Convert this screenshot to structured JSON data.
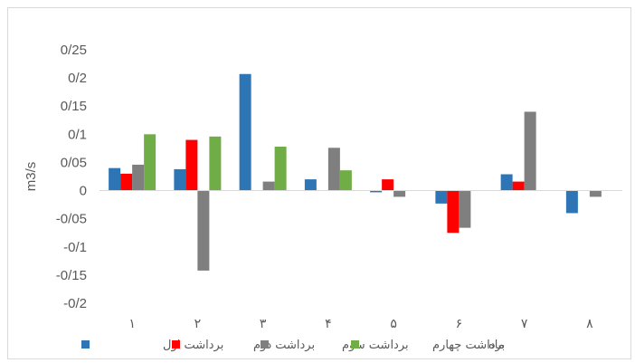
{
  "chart_data": {
    "type": "bar",
    "ylabel": "m3/s",
    "xlabel": "ماه",
    "ylim": [
      -0.2,
      0.25
    ],
    "yticks": [
      "-0/2",
      "-0/15",
      "-0/1",
      "-0/05",
      "0",
      "0/05",
      "0/1",
      "0/15",
      "0/2",
      "0/25"
    ],
    "ytick_values": [
      -0.2,
      -0.15,
      -0.1,
      -0.05,
      0,
      0.05,
      0.1,
      0.15,
      0.2,
      0.25
    ],
    "categories": [
      "۱",
      "۲",
      "۳",
      "۴",
      "۵",
      "۶",
      "۷",
      "۸"
    ],
    "grid": false,
    "legend_position": "bottom",
    "series": [
      {
        "name": "برداشت اول",
        "color": "#2e75b6",
        "values": [
          0.04,
          0.038,
          0.207,
          0.02,
          -0.003,
          -0.023,
          0.029,
          -0.04
        ]
      },
      {
        "name": "برداشت دوم",
        "color": "#ff0000",
        "values": [
          0.03,
          0.09,
          null,
          null,
          0.02,
          -0.075,
          0.016,
          null
        ]
      },
      {
        "name": "برداشت سوم",
        "color": "#7f7f7f",
        "values": [
          0.046,
          -0.142,
          0.016,
          0.076,
          -0.011,
          -0.066,
          0.14,
          -0.011
        ]
      },
      {
        "name": "برداشت چهارم",
        "color": "#70ad47",
        "values": [
          0.1,
          0.096,
          0.078,
          0.036,
          null,
          null,
          null,
          null
        ]
      }
    ]
  }
}
